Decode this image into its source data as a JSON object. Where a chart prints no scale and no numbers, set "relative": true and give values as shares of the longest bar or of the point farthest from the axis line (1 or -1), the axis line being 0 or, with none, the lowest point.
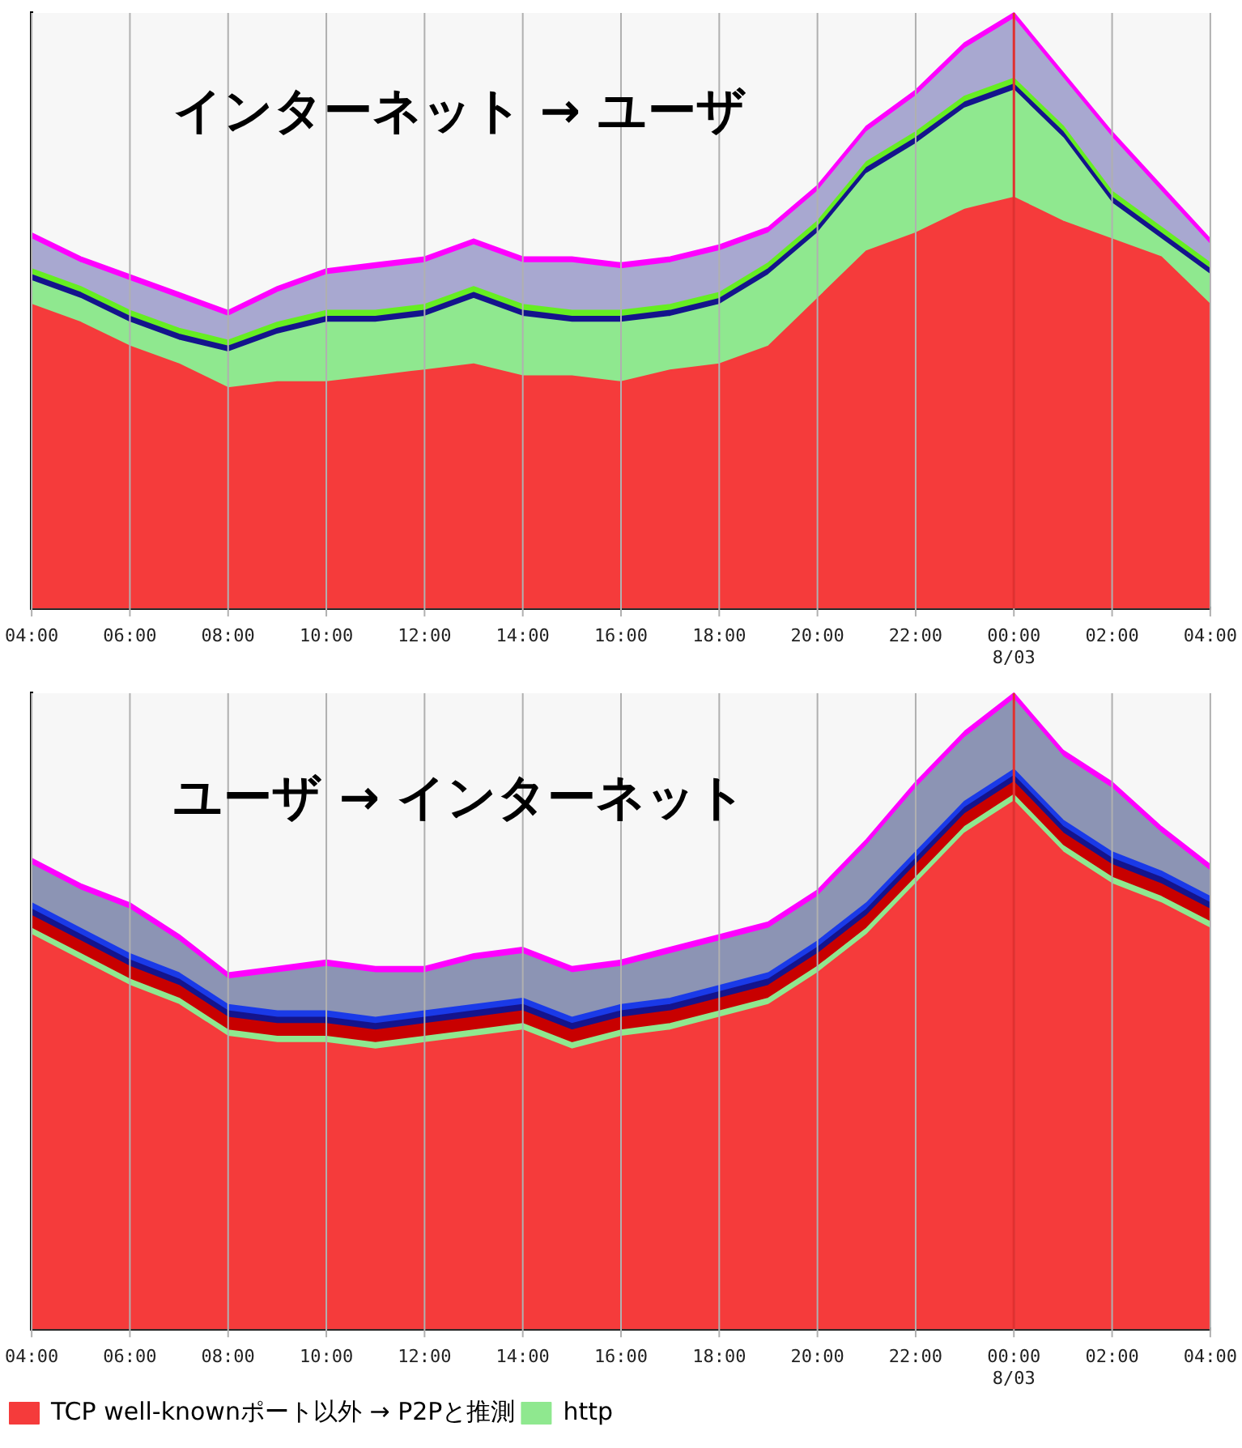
{
  "chart_data": [
    {
      "type": "area",
      "title": "インターネット → ユーザ",
      "stacked": true,
      "relative": true,
      "grid": "x",
      "marker": "none",
      "x": [
        "--08-02T04:00",
        "--08-02T05:00",
        "--08-02T06:00",
        "--08-02T07:00",
        "--08-02T08:00",
        "--08-02T09:00",
        "--08-02T10:00",
        "--08-02T11:00",
        "--08-02T12:00",
        "--08-02T13:00",
        "--08-02T14:00",
        "--08-02T15:00",
        "--08-02T16:00",
        "--08-02T17:00",
        "--08-02T18:00",
        "--08-02T19:00",
        "--08-02T20:00",
        "--08-02T21:00",
        "--08-02T22:00",
        "--08-02T23:00",
        "--08-03T00:00",
        "--08-03T01:00",
        "--08-03T02:00",
        "--08-03T03:00",
        "--08-03T04:00"
      ],
      "xlim": [
        "--08-02T04:00",
        "--08-03T04:00"
      ],
      "xticks": [
        {
          "value": "--08-02T04:00",
          "label": "04:00"
        },
        {
          "value": "--08-02T06:00",
          "label": "06:00"
        },
        {
          "value": "--08-02T08:00",
          "label": "08:00"
        },
        {
          "value": "--08-02T10:00",
          "label": "10:00"
        },
        {
          "value": "--08-02T12:00",
          "label": "12:00"
        },
        {
          "value": "--08-02T14:00",
          "label": "14:00"
        },
        {
          "value": "--08-02T16:00",
          "label": "16:00"
        },
        {
          "value": "--08-02T18:00",
          "label": "18:00"
        },
        {
          "value": "--08-02T20:00",
          "label": "20:00"
        },
        {
          "value": "--08-02T22:00",
          "label": "22:00"
        },
        {
          "value": "--08-03T00:00",
          "label": "00:00\n8/03"
        },
        {
          "value": "--08-03T02:00",
          "label": "02:00"
        },
        {
          "value": "--08-03T04:00",
          "label": "04:00"
        }
      ],
      "ref_lines": [
        {
          "axis": "x",
          "value": "--08-03T00:00",
          "color": "#e03030"
        }
      ],
      "series": [
        {
          "color": "#f53b3b",
          "values": [
            0.51,
            0.48,
            0.44,
            0.41,
            0.37,
            0.38,
            0.38,
            0.39,
            0.4,
            0.41,
            0.39,
            0.39,
            0.38,
            0.4,
            0.41,
            0.44,
            0.52,
            0.6,
            0.63,
            0.67,
            0.69,
            0.65,
            0.62,
            0.59,
            0.51
          ]
        },
        {
          "color": "#8fe88f",
          "values": [
            0.04,
            0.04,
            0.04,
            0.04,
            0.06,
            0.08,
            0.1,
            0.09,
            0.09,
            0.11,
            0.1,
            0.09,
            0.1,
            0.09,
            0.1,
            0.12,
            0.11,
            0.13,
            0.15,
            0.17,
            0.18,
            0.14,
            0.06,
            0.03,
            0.05
          ]
        },
        {
          "color": "#14148c",
          "values": [
            0.01,
            0.01,
            0.01,
            0.01,
            0.01,
            0.01,
            0.01,
            0.01,
            0.01,
            0.01,
            0.01,
            0.01,
            0.01,
            0.01,
            0.01,
            0.01,
            0.01,
            0.01,
            0.01,
            0.01,
            0.01,
            0.01,
            0.01,
            0.01,
            0.01
          ]
        },
        {
          "color": "#66ee22",
          "values": [
            0.01,
            0.01,
            0.01,
            0.01,
            0.01,
            0.01,
            0.01,
            0.01,
            0.01,
            0.01,
            0.01,
            0.01,
            0.01,
            0.01,
            0.01,
            0.01,
            0.01,
            0.01,
            0.01,
            0.01,
            0.01,
            0.01,
            0.01,
            0.01,
            0.01
          ]
        },
        {
          "color": "#a8a8d0",
          "values": [
            0.05,
            0.04,
            0.05,
            0.05,
            0.04,
            0.05,
            0.06,
            0.07,
            0.07,
            0.07,
            0.07,
            0.08,
            0.07,
            0.07,
            0.07,
            0.05,
            0.05,
            0.05,
            0.06,
            0.08,
            0.1,
            0.08,
            0.09,
            0.06,
            0.03
          ]
        },
        {
          "color": "#ff00ff",
          "values": [
            0.01,
            0.01,
            0.01,
            0.01,
            0.01,
            0.01,
            0.01,
            0.01,
            0.01,
            0.01,
            0.01,
            0.01,
            0.01,
            0.01,
            0.01,
            0.01,
            0.01,
            0.01,
            0.01,
            0.01,
            0.01,
            0.01,
            0.01,
            0.01,
            0.01
          ]
        }
      ]
    },
    {
      "type": "area",
      "title": "ユーザ → インターネット",
      "stacked": true,
      "relative": true,
      "grid": "x",
      "marker": "none",
      "legend": "bottom",
      "x": [
        "--08-02T04:00",
        "--08-02T05:00",
        "--08-02T06:00",
        "--08-02T07:00",
        "--08-02T08:00",
        "--08-02T09:00",
        "--08-02T10:00",
        "--08-02T11:00",
        "--08-02T12:00",
        "--08-02T13:00",
        "--08-02T14:00",
        "--08-02T15:00",
        "--08-02T16:00",
        "--08-02T17:00",
        "--08-02T18:00",
        "--08-02T19:00",
        "--08-02T20:00",
        "--08-02T21:00",
        "--08-02T22:00",
        "--08-02T23:00",
        "--08-03T00:00",
        "--08-03T01:00",
        "--08-03T02:00",
        "--08-03T03:00",
        "--08-03T04:00"
      ],
      "xlim": [
        "--08-02T04:00",
        "--08-03T04:00"
      ],
      "xticks": [
        {
          "value": "--08-02T04:00",
          "label": "04:00"
        },
        {
          "value": "--08-02T06:00",
          "label": "06:00"
        },
        {
          "value": "--08-02T08:00",
          "label": "08:00"
        },
        {
          "value": "--08-02T10:00",
          "label": "10:00"
        },
        {
          "value": "--08-02T12:00",
          "label": "12:00"
        },
        {
          "value": "--08-02T14:00",
          "label": "14:00"
        },
        {
          "value": "--08-02T16:00",
          "label": "16:00"
        },
        {
          "value": "--08-02T18:00",
          "label": "18:00"
        },
        {
          "value": "--08-02T20:00",
          "label": "20:00"
        },
        {
          "value": "--08-02T22:00",
          "label": "22:00"
        },
        {
          "value": "--08-03T00:00",
          "label": "00:00\n8/03"
        },
        {
          "value": "--08-03T02:00",
          "label": "02:00"
        },
        {
          "value": "--08-03T04:00",
          "label": "04:00"
        }
      ],
      "ref_lines": [
        {
          "axis": "x",
          "value": "--08-03T00:00",
          "color": "#e03030"
        }
      ],
      "series": [
        {
          "name": "TCP well-knownポート以外 → P2Pと推測",
          "color": "#f53b3b",
          "values": [
            0.62,
            0.58,
            0.54,
            0.51,
            0.46,
            0.45,
            0.45,
            0.44,
            0.45,
            0.46,
            0.47,
            0.44,
            0.46,
            0.47,
            0.49,
            0.51,
            0.56,
            0.62,
            0.7,
            0.78,
            0.83,
            0.75,
            0.7,
            0.67,
            0.63
          ]
        },
        {
          "name": "http",
          "color": "#8fe88f",
          "values": [
            0.01,
            0.01,
            0.01,
            0.01,
            0.01,
            0.01,
            0.01,
            0.01,
            0.01,
            0.01,
            0.01,
            0.01,
            0.01,
            0.01,
            0.01,
            0.01,
            0.01,
            0.01,
            0.01,
            0.01,
            0.01,
            0.01,
            0.01,
            0.01,
            0.01
          ]
        },
        {
          "color": "#c80000",
          "values": [
            0.02,
            0.02,
            0.02,
            0.02,
            0.02,
            0.02,
            0.02,
            0.02,
            0.02,
            0.02,
            0.02,
            0.02,
            0.02,
            0.02,
            0.02,
            0.02,
            0.02,
            0.02,
            0.02,
            0.02,
            0.02,
            0.02,
            0.02,
            0.02,
            0.02
          ]
        },
        {
          "color": "#14148c",
          "values": [
            0.01,
            0.01,
            0.01,
            0.01,
            0.01,
            0.01,
            0.01,
            0.01,
            0.01,
            0.01,
            0.01,
            0.01,
            0.01,
            0.01,
            0.01,
            0.01,
            0.01,
            0.01,
            0.01,
            0.01,
            0.01,
            0.01,
            0.01,
            0.01,
            0.01
          ]
        },
        {
          "color": "#1a3ae8",
          "values": [
            0.01,
            0.01,
            0.01,
            0.01,
            0.01,
            0.01,
            0.01,
            0.01,
            0.01,
            0.01,
            0.01,
            0.01,
            0.01,
            0.01,
            0.01,
            0.01,
            0.01,
            0.01,
            0.01,
            0.01,
            0.01,
            0.01,
            0.01,
            0.01,
            0.01
          ]
        },
        {
          "color": "#8c94b4",
          "values": [
            0.06,
            0.06,
            0.07,
            0.05,
            0.04,
            0.06,
            0.07,
            0.07,
            0.06,
            0.07,
            0.07,
            0.07,
            0.06,
            0.07,
            0.07,
            0.07,
            0.07,
            0.09,
            0.1,
            0.1,
            0.11,
            0.1,
            0.1,
            0.06,
            0.04
          ]
        },
        {
          "color": "#ff00ff",
          "values": [
            0.01,
            0.01,
            0.01,
            0.01,
            0.01,
            0.01,
            0.01,
            0.01,
            0.01,
            0.01,
            0.01,
            0.01,
            0.01,
            0.01,
            0.01,
            0.01,
            0.01,
            0.01,
            0.01,
            0.01,
            0.01,
            0.01,
            0.01,
            0.01,
            0.01
          ]
        }
      ]
    }
  ]
}
